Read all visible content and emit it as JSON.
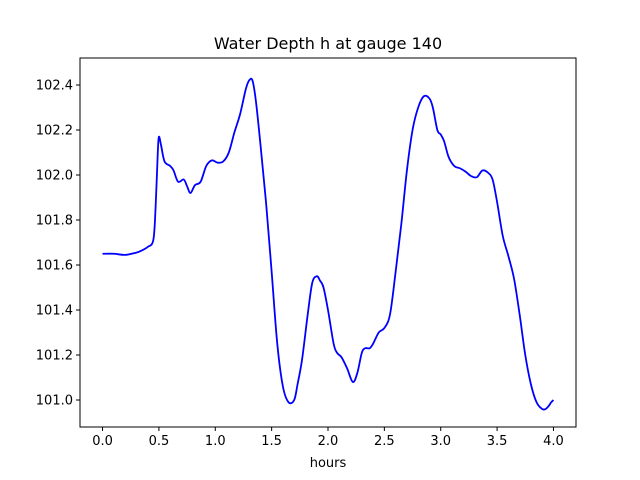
{
  "chart_data": {
    "type": "line",
    "title": "Water Depth h at gauge 140",
    "xlabel": "hours",
    "ylabel": "",
    "xlim": [
      -0.2,
      4.2
    ],
    "ylim": [
      100.88,
      102.52
    ],
    "xticks": [
      0.0,
      0.5,
      1.0,
      1.5,
      2.0,
      2.5,
      3.0,
      3.5,
      4.0
    ],
    "xtick_labels": [
      "0.0",
      "0.5",
      "1.0",
      "1.5",
      "2.0",
      "2.5",
      "3.0",
      "3.5",
      "4.0"
    ],
    "yticks": [
      101.0,
      101.2,
      101.4,
      101.6,
      101.8,
      102.0,
      102.2,
      102.4
    ],
    "ytick_labels": [
      "101.0",
      "101.2",
      "101.4",
      "101.6",
      "101.8",
      "102.0",
      "102.2",
      "102.4"
    ],
    "grid": false,
    "legend": false,
    "series": [
      {
        "color": "#0000ff",
        "x": [
          0.0,
          0.1,
          0.2,
          0.3,
          0.35,
          0.4,
          0.45,
          0.47,
          0.49,
          0.5,
          0.52,
          0.55,
          0.6,
          0.63,
          0.67,
          0.72,
          0.75,
          0.78,
          0.82,
          0.87,
          0.92,
          0.97,
          1.02,
          1.07,
          1.12,
          1.17,
          1.22,
          1.27,
          1.3,
          1.33,
          1.36,
          1.4,
          1.45,
          1.5,
          1.55,
          1.6,
          1.65,
          1.7,
          1.73,
          1.77,
          1.82,
          1.86,
          1.9,
          1.93,
          1.96,
          2.0,
          2.05,
          2.08,
          2.12,
          2.17,
          2.22,
          2.26,
          2.3,
          2.33,
          2.37,
          2.4,
          2.45,
          2.5,
          2.55,
          2.6,
          2.65,
          2.7,
          2.75,
          2.8,
          2.85,
          2.9,
          2.93,
          2.97,
          3.0,
          3.03,
          3.07,
          3.12,
          3.17,
          3.22,
          3.27,
          3.32,
          3.37,
          3.42,
          3.46,
          3.5,
          3.55,
          3.6,
          3.65,
          3.7,
          3.75,
          3.8,
          3.85,
          3.9,
          3.93,
          3.96,
          3.98,
          4.0
        ],
        "values": [
          101.65,
          101.65,
          101.645,
          101.655,
          101.665,
          101.68,
          101.71,
          101.85,
          102.1,
          102.17,
          102.13,
          102.06,
          102.04,
          102.02,
          101.97,
          101.98,
          101.95,
          101.92,
          101.955,
          101.97,
          102.04,
          102.065,
          102.055,
          102.06,
          102.1,
          102.19,
          102.27,
          102.38,
          102.42,
          102.42,
          102.33,
          102.14,
          101.88,
          101.57,
          101.25,
          101.06,
          100.99,
          101.0,
          101.07,
          101.18,
          101.38,
          101.52,
          101.55,
          101.53,
          101.5,
          101.4,
          101.25,
          101.21,
          101.19,
          101.14,
          101.08,
          101.12,
          101.21,
          101.23,
          101.23,
          101.25,
          101.3,
          101.32,
          101.38,
          101.57,
          101.78,
          102.02,
          102.2,
          102.3,
          102.35,
          102.34,
          102.3,
          102.2,
          102.18,
          102.15,
          102.08,
          102.04,
          102.03,
          102.015,
          101.995,
          101.99,
          102.02,
          102.01,
          101.98,
          101.88,
          101.73,
          101.64,
          101.54,
          101.38,
          101.2,
          101.07,
          100.99,
          100.96,
          100.96,
          100.975,
          100.99,
          101.0
        ]
      }
    ]
  }
}
